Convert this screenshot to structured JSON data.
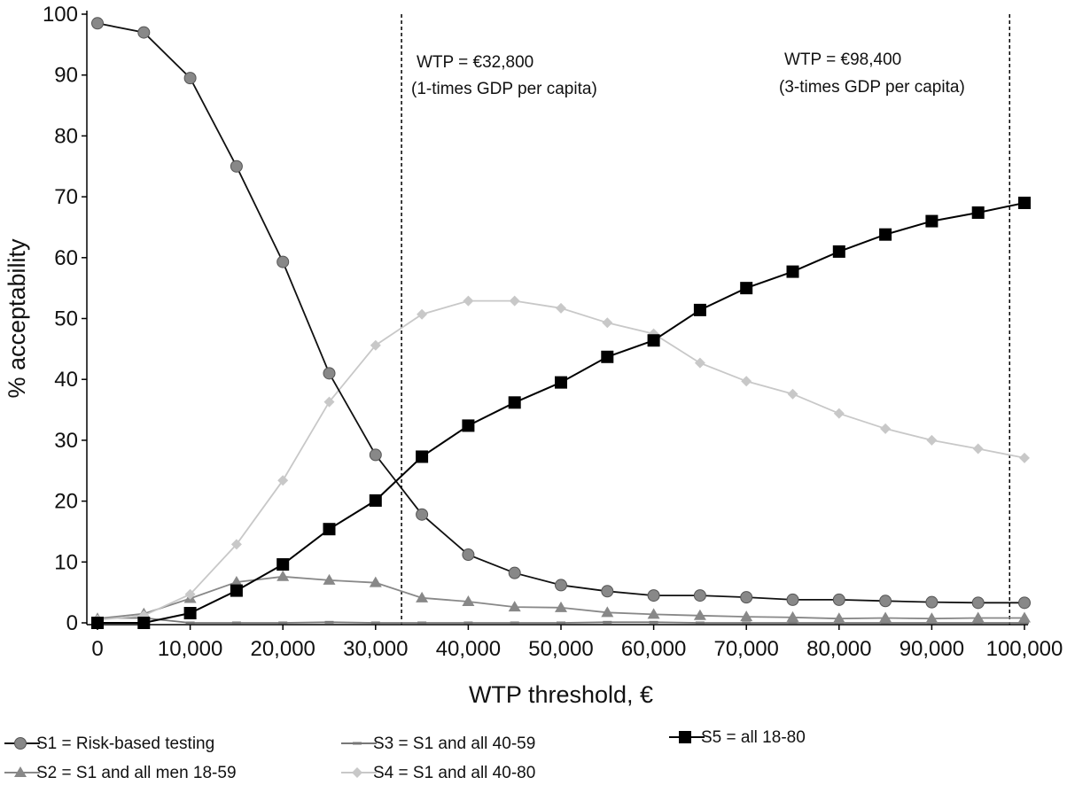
{
  "chart_data": {
    "type": "line",
    "title": "",
    "xlabel": "WTP threshold, €",
    "ylabel": "% acceptability",
    "xlim": [
      0,
      100000
    ],
    "ylim": [
      0,
      100
    ],
    "grid": false,
    "x": [
      0,
      5000,
      10000,
      15000,
      20000,
      25000,
      30000,
      35000,
      40000,
      45000,
      50000,
      55000,
      60000,
      65000,
      70000,
      75000,
      80000,
      85000,
      90000,
      95000,
      100000
    ],
    "x_ticks": [
      0,
      10000,
      20000,
      30000,
      40000,
      50000,
      60000,
      70000,
      80000,
      90000,
      100000
    ],
    "x_tick_labels": [
      "0",
      "10,000",
      "20,000",
      "30,000",
      "40,000",
      "50,000",
      "60,000",
      "70,000",
      "80,000",
      "90,000",
      "100,000"
    ],
    "y_ticks": [
      0,
      10,
      20,
      30,
      40,
      50,
      60,
      70,
      80,
      90,
      100
    ],
    "y_tick_labels": [
      "0",
      "10",
      "20",
      "30",
      "40",
      "50",
      "60",
      "70",
      "80",
      "90",
      "100"
    ],
    "series": [
      {
        "name": "S1 = Risk-based testing",
        "marker": "circle",
        "color": "#888888",
        "line_color": "#111111",
        "values": [
          98.5,
          97,
          89.5,
          75,
          59.3,
          41,
          27.6,
          17.8,
          11.2,
          8.2,
          6.2,
          5.2,
          4.5,
          4.5,
          4.2,
          3.8,
          3.8,
          3.6,
          3.4,
          3.3,
          3.3
        ]
      },
      {
        "name": "S2 = S1 and all men 18-59",
        "marker": "triangle",
        "color": "#888888",
        "line_color": "#888888",
        "values": [
          0.7,
          1.5,
          4,
          6.7,
          7.6,
          7,
          6.6,
          4.1,
          3.5,
          2.6,
          2.5,
          1.7,
          1.4,
          1.2,
          1,
          0.9,
          0.7,
          0.8,
          0.7,
          0.8,
          0.8
        ]
      },
      {
        "name": "S3 = S1 and all 40-59",
        "marker": "dash",
        "color": "#777777",
        "line_color": "#777777",
        "values": [
          0.8,
          0.8,
          0,
          0,
          0,
          0.1,
          0,
          0,
          0,
          0,
          0,
          0.1,
          0.1,
          0,
          0,
          0,
          0,
          0,
          0,
          0,
          0
        ]
      },
      {
        "name": "S4 = S1 and all 40-80",
        "marker": "diamond",
        "color": "#c8c8c8",
        "line_color": "#c8c8c8",
        "values": [
          0.5,
          1.2,
          4.7,
          12.9,
          23.4,
          36.3,
          45.6,
          50.7,
          52.9,
          52.9,
          51.7,
          49.3,
          47.5,
          42.7,
          39.7,
          37.6,
          34.4,
          31.9,
          30,
          28.6,
          27.1
        ]
      },
      {
        "name": "S5 = all 18-80",
        "marker": "square",
        "color": "#000000",
        "line_color": "#000000",
        "values": [
          0,
          0,
          1.6,
          5.3,
          9.6,
          15.4,
          20.1,
          27.3,
          32.4,
          36.2,
          39.5,
          43.7,
          46.4,
          51.4,
          55,
          57.7,
          61,
          63.8,
          66,
          67.4,
          69
        ]
      }
    ],
    "reference_lines": [
      {
        "x": 32800,
        "label1": "WTP = €32,800",
        "label2": "(1-times GDP per capita)",
        "style": "dashed"
      },
      {
        "x": 98400,
        "label1": "WTP = €98,400",
        "label2": "(3-times GDP per capita)",
        "style": "dashed"
      }
    ],
    "legend_position": "bottom"
  }
}
